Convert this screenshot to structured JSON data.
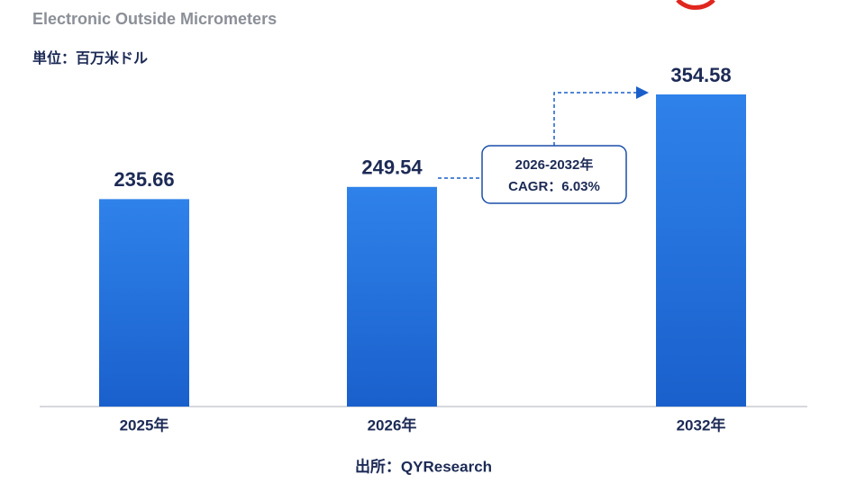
{
  "chart_data": {
    "type": "bar",
    "title": "Electronic Outside Micrometers",
    "subtitle": "単位：百万米ドル",
    "source": "出所：QYResearch",
    "categories": [
      "2025年",
      "2026年",
      "2032年"
    ],
    "values": [
      235.66,
      249.54,
      354.58
    ],
    "color": "#1f6fdc",
    "annotation": [
      "2026-2032年",
      "CAGR：6.03%"
    ]
  }
}
